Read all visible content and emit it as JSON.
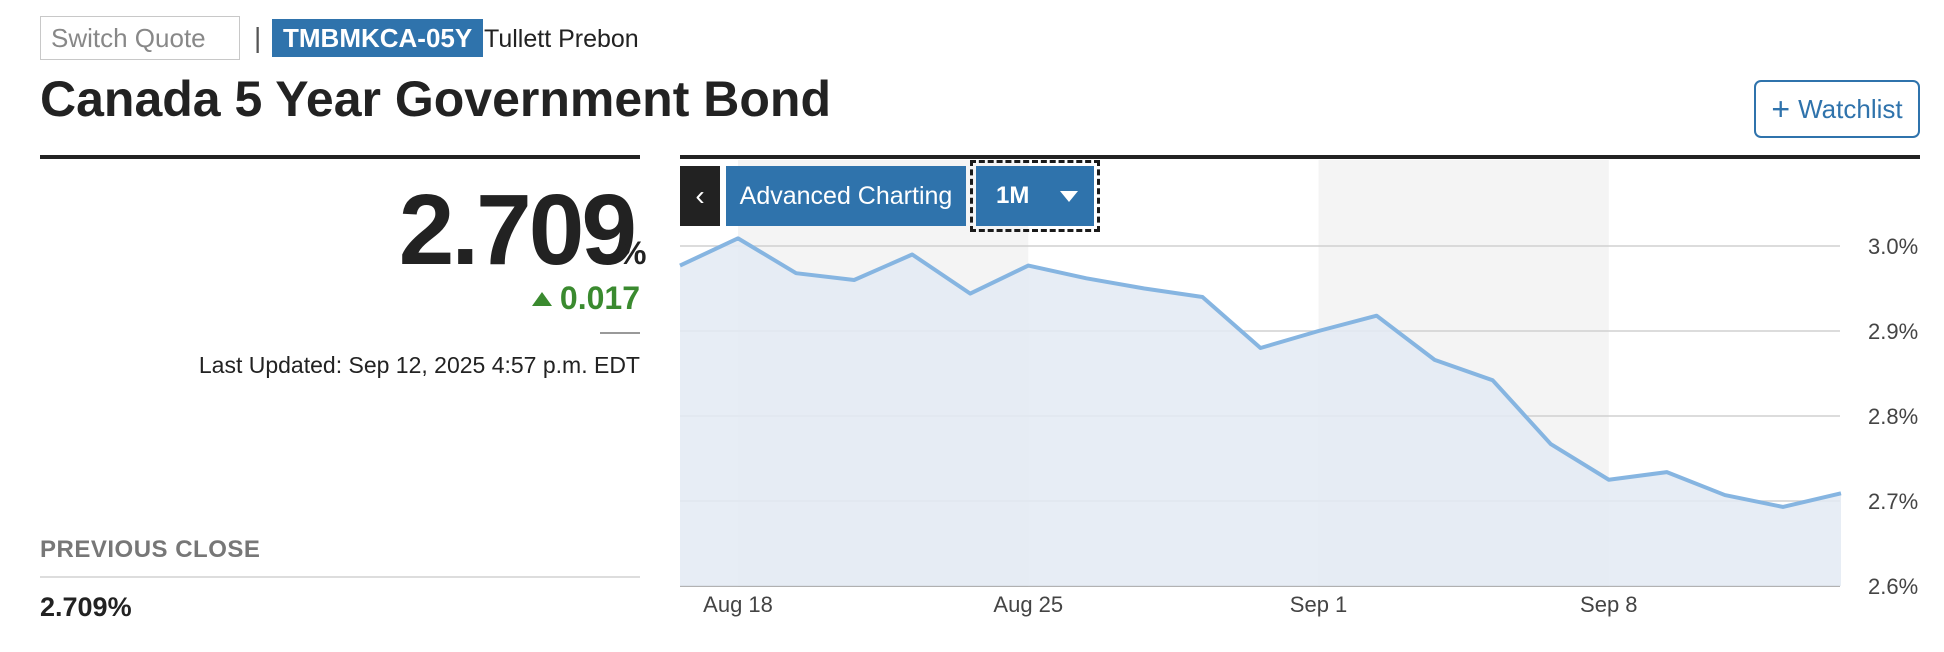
{
  "header": {
    "switch_quote_placeholder": "Switch Quote",
    "separator": "|",
    "ticker": "TMBMKCA-05Y",
    "source": "Tullett Prebon",
    "title": "Canada 5 Year Government Bond",
    "watchlist_label": "Watchlist",
    "watchlist_icon": "plus-icon"
  },
  "quote": {
    "price": "2.709",
    "unit": "%",
    "change": "0.017",
    "change_direction": "up",
    "last_updated": "Last Updated: Sep 12, 2025 4:57 p.m. EDT",
    "previous_close_label": "PREVIOUS CLOSE",
    "previous_close_value": "2.709%"
  },
  "chart_controls": {
    "collapse_icon": "chevron-left-icon",
    "advanced_label": "Advanced Charting",
    "range_label": "1M",
    "range_icon": "caret-down-icon"
  },
  "colors": {
    "brand_blue": "#2f73ac",
    "line": "#86b5e1",
    "area": "#e3eaf3",
    "positive": "#3a8a2f"
  },
  "chart_data": {
    "type": "area",
    "x_tick_labels": [
      "Aug 18",
      "Aug 25",
      "Sep 1",
      "Sep 8"
    ],
    "y_tick_labels": [
      "3.0%",
      "2.9%",
      "2.8%",
      "2.7%",
      "2.6%"
    ],
    "ylim": [
      2.6,
      3.0
    ],
    "grid": true,
    "highlighted_weeks": [
      "Aug 18",
      "Sep 1"
    ],
    "series": [
      {
        "x": [
          "Aug 15",
          "Aug 18",
          "Aug 19",
          "Aug 20",
          "Aug 21",
          "Aug 22",
          "Aug 25",
          "Aug 26",
          "Aug 27",
          "Aug 28",
          "Aug 29",
          "Sep 1",
          "Sep 2",
          "Sep 3",
          "Sep 4",
          "Sep 5",
          "Sep 8",
          "Sep 9",
          "Sep 10",
          "Sep 11",
          "Sep 12"
        ],
        "values": [
          2.977,
          3.009,
          2.968,
          2.96,
          2.99,
          2.944,
          2.977,
          2.962,
          2.95,
          2.94,
          2.88,
          2.9,
          2.918,
          2.866,
          2.842,
          2.767,
          2.725,
          2.734,
          2.707,
          2.693,
          2.709
        ]
      }
    ]
  }
}
